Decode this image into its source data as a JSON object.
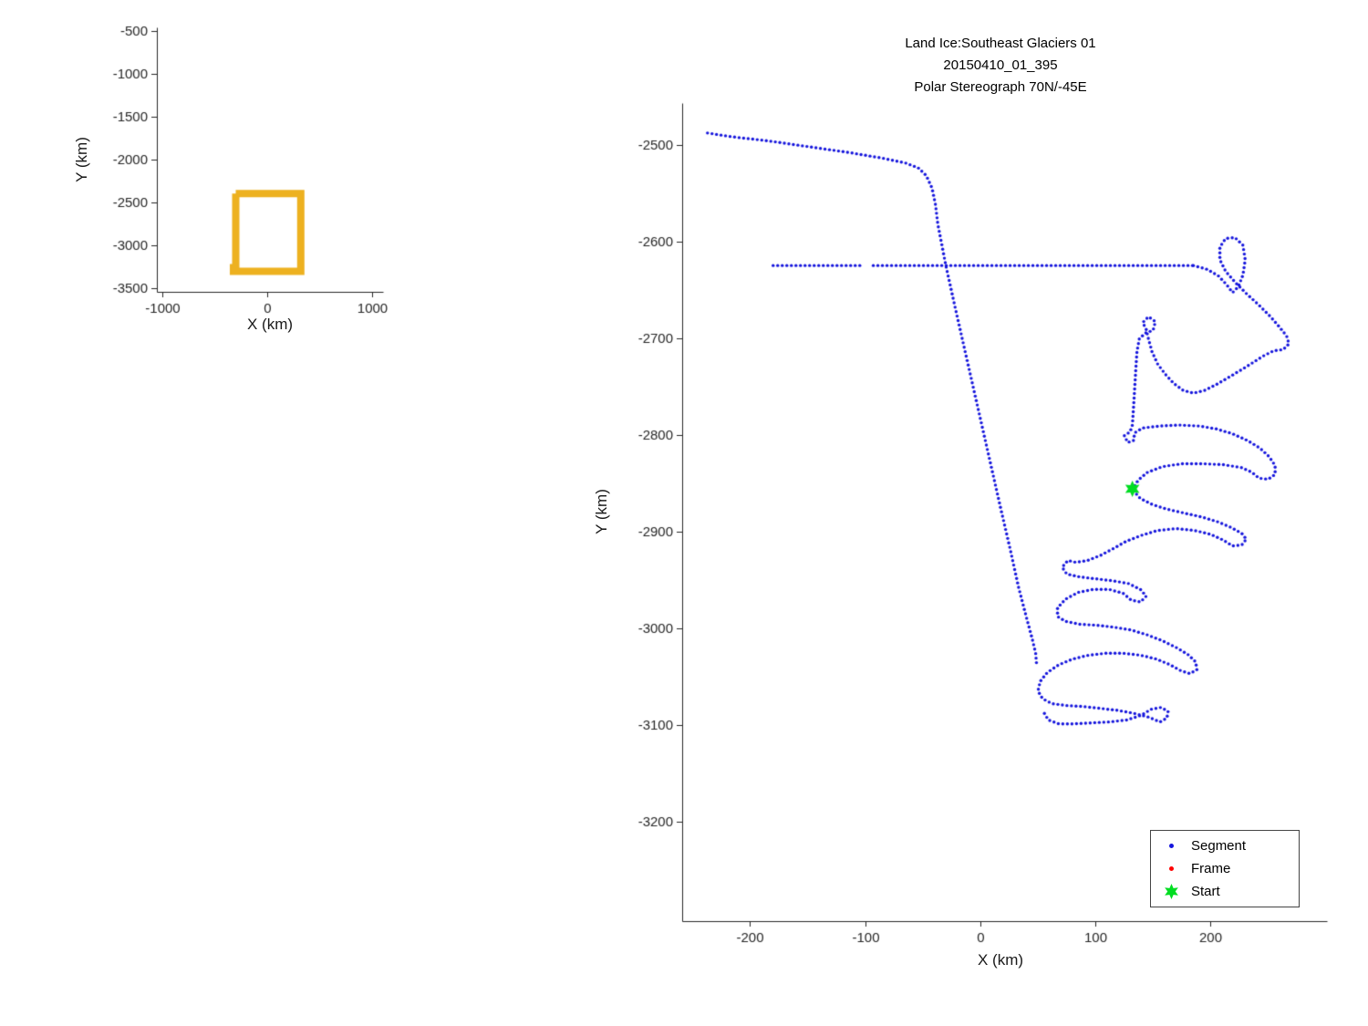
{
  "figure": {
    "background": "#ffffff"
  },
  "chart_data": [
    {
      "name": "coverage-overview-inset",
      "type": "line",
      "xlabel": "X (km)",
      "ylabel": "Y (km)",
      "xlim": [
        -1050,
        1100
      ],
      "ylim": [
        -3545,
        -460
      ],
      "xticks": [
        -1000,
        0,
        1000
      ],
      "yticks": [
        -500,
        -1000,
        -1500,
        -2000,
        -2500,
        -3000,
        -3500
      ],
      "grid": false,
      "series": [
        {
          "name": "flight-coverage-outline",
          "style": "line",
          "color": "#edb120",
          "line_width": 8,
          "paths": [
            [
              [
                -300,
                -2400
              ],
              [
                318,
                -2400
              ],
              [
                318,
                -3305
              ],
              [
                -322,
                -3305
              ],
              [
                -322,
                -3262
              ],
              [
                -300,
                -3262
              ],
              [
                -300,
                -2400
              ]
            ]
          ]
        }
      ]
    },
    {
      "name": "flight-track-main",
      "type": "scatter",
      "title_lines": [
        "Land Ice:Southeast Glaciers 01",
        "20150410_01_395",
        "Polar Stereograph 70N/-45E"
      ],
      "xlabel": "X (km)",
      "ylabel": "Y (km)",
      "xlim": [
        -259,
        301
      ],
      "ylim": [
        -3303,
        -2457
      ],
      "xticks": [
        -200,
        -100,
        0,
        100,
        200
      ],
      "yticks": [
        -2500,
        -2600,
        -2700,
        -2800,
        -2900,
        -3000,
        -3100,
        -3200
      ],
      "grid": false,
      "legend": {
        "position": "bottom-right",
        "entries": [
          {
            "label": "Segment",
            "marker": "dot",
            "color": "#1515dd"
          },
          {
            "label": "Frame",
            "marker": "dot",
            "color": "#ff0000"
          },
          {
            "label": "Start",
            "marker": "star",
            "color": "#00dd22"
          }
        ]
      },
      "series": [
        {
          "name": "Segment",
          "style": "dots",
          "color": "#1515dd",
          "dot_radius": 1.7,
          "dot_spacing_px": 5,
          "paths": [
            [
              [
                -237,
                -2488
              ],
              [
                -215,
                -2492
              ],
              [
                -185,
                -2496
              ],
              [
                -150,
                -2502
              ],
              [
                -115,
                -2508
              ],
              [
                -85,
                -2514
              ],
              [
                -65,
                -2519
              ],
              [
                -54,
                -2524
              ],
              [
                -47,
                -2532
              ],
              [
                -42,
                -2545
              ],
              [
                -39,
                -2562
              ],
              [
                -37,
                -2582
              ],
              [
                -30,
                -2625
              ],
              [
                -22,
                -2668
              ],
              [
                -14,
                -2710
              ],
              [
                -6,
                -2752
              ],
              [
                2,
                -2794
              ],
              [
                10,
                -2836
              ],
              [
                18,
                -2878
              ],
              [
                26,
                -2919
              ],
              [
                33,
                -2957
              ],
              [
                40,
                -2989
              ],
              [
                45,
                -3011
              ],
              [
                48,
                -3026
              ],
              [
                49,
                -3040
              ]
            ],
            [
              [
                -180,
                -2625
              ],
              [
                -102,
                -2625
              ]
            ],
            [
              [
                -93,
                -2625
              ],
              [
                185,
                -2625
              ]
            ],
            [
              [
                185,
                -2625
              ],
              [
                197,
                -2629
              ],
              [
                207,
                -2636
              ],
              [
                214,
                -2645
              ],
              [
                219,
                -2653
              ],
              [
                224,
                -2647
              ],
              [
                228,
                -2635
              ],
              [
                230,
                -2619
              ],
              [
                228,
                -2604
              ],
              [
                221,
                -2596
              ],
              [
                213,
                -2597
              ],
              [
                208,
                -2606
              ],
              [
                208,
                -2619
              ],
              [
                213,
                -2631
              ],
              [
                221,
                -2642
              ],
              [
                231,
                -2654
              ],
              [
                242,
                -2666
              ],
              [
                252,
                -2678
              ],
              [
                260,
                -2689
              ],
              [
                266,
                -2698
              ],
              [
                268,
                -2706
              ],
              [
                263,
                -2712
              ],
              [
                255,
                -2713
              ],
              [
                245,
                -2719
              ],
              [
                232,
                -2729
              ],
              [
                218,
                -2739
              ],
              [
                205,
                -2748
              ],
              [
                195,
                -2754
              ],
              [
                185,
                -2757
              ],
              [
                176,
                -2754
              ],
              [
                168,
                -2747
              ],
              [
                161,
                -2738
              ],
              [
                154,
                -2727
              ],
              [
                149,
                -2714
              ],
              [
                146,
                -2701
              ],
              [
                144,
                -2691
              ],
              [
                141,
                -2684
              ],
              [
                146,
                -2678
              ],
              [
                152,
                -2683
              ],
              [
                150,
                -2692
              ],
              [
                143,
                -2695
              ],
              [
                138,
                -2701
              ],
              [
                136,
                -2714
              ],
              [
                135,
                -2732
              ],
              [
                134,
                -2752
              ],
              [
                133,
                -2772
              ],
              [
                132,
                -2790
              ],
              [
                130,
                -2797
              ],
              [
                125,
                -2801
              ],
              [
                128,
                -2808
              ],
              [
                133,
                -2806
              ],
              [
                134,
                -2798
              ],
              [
                141,
                -2793
              ],
              [
                156,
                -2791
              ],
              [
                173,
                -2790
              ],
              [
                190,
                -2791
              ],
              [
                205,
                -2794
              ],
              [
                219,
                -2799
              ],
              [
                232,
                -2806
              ],
              [
                243,
                -2814
              ],
              [
                251,
                -2823
              ],
              [
                256,
                -2832
              ],
              [
                256,
                -2841
              ],
              [
                250,
                -2846
              ],
              [
                242,
                -2845
              ],
              [
                236,
                -2839
              ],
              [
                227,
                -2834
              ],
              [
                211,
                -2831
              ],
              [
                193,
                -2830
              ],
              [
                175,
                -2830
              ],
              [
                158,
                -2833
              ],
              [
                145,
                -2839
              ],
              [
                137,
                -2847
              ],
              [
                133,
                -2855
              ]
            ],
            [
              [
                133,
                -2858
              ],
              [
                139,
                -2866
              ],
              [
                149,
                -2872
              ],
              [
                162,
                -2877
              ],
              [
                177,
                -2881
              ],
              [
                192,
                -2885
              ],
              [
                206,
                -2890
              ],
              [
                218,
                -2896
              ],
              [
                227,
                -2902
              ],
              [
                231,
                -2908
              ],
              [
                227,
                -2914
              ],
              [
                219,
                -2915
              ],
              [
                211,
                -2909
              ],
              [
                200,
                -2903
              ],
              [
                186,
                -2899
              ],
              [
                170,
                -2897
              ],
              [
                154,
                -2899
              ],
              [
                140,
                -2904
              ],
              [
                127,
                -2910
              ],
              [
                115,
                -2918
              ],
              [
                104,
                -2925
              ],
              [
                93,
                -2930
              ],
              [
                83,
                -2932
              ],
              [
                76,
                -2930
              ],
              [
                71,
                -2937
              ],
              [
                75,
                -2944
              ],
              [
                86,
                -2947
              ],
              [
                100,
                -2949
              ],
              [
                115,
                -2951
              ],
              [
                129,
                -2954
              ],
              [
                139,
                -2960
              ],
              [
                144,
                -2967
              ],
              [
                139,
                -2973
              ],
              [
                131,
                -2971
              ],
              [
                124,
                -2964
              ],
              [
                112,
                -2960
              ],
              [
                98,
                -2960
              ],
              [
                85,
                -2963
              ],
              [
                74,
                -2970
              ],
              [
                67,
                -2979
              ],
              [
                67,
                -2988
              ],
              [
                74,
                -2993
              ],
              [
                86,
                -2996
              ],
              [
                101,
                -2997
              ],
              [
                116,
                -2999
              ],
              [
                131,
                -3002
              ],
              [
                145,
                -3007
              ],
              [
                158,
                -3013
              ],
              [
                170,
                -3020
              ],
              [
                180,
                -3027
              ],
              [
                187,
                -3035
              ],
              [
                188,
                -3043
              ],
              [
                182,
                -3047
              ],
              [
                174,
                -3044
              ],
              [
                165,
                -3038
              ],
              [
                153,
                -3032
              ],
              [
                139,
                -3028
              ],
              [
                124,
                -3026
              ],
              [
                109,
                -3026
              ],
              [
                94,
                -3028
              ],
              [
                80,
                -3032
              ],
              [
                68,
                -3038
              ],
              [
                58,
                -3046
              ],
              [
                52,
                -3055
              ],
              [
                50,
                -3065
              ],
              [
                54,
                -3073
              ],
              [
                62,
                -3078
              ],
              [
                74,
                -3080
              ],
              [
                89,
                -3081
              ],
              [
                104,
                -3083
              ],
              [
                119,
                -3085
              ],
              [
                133,
                -3088
              ],
              [
                146,
                -3092
              ],
              [
                156,
                -3097
              ],
              [
                162,
                -3093
              ],
              [
                163,
                -3086
              ],
              [
                157,
                -3082
              ],
              [
                148,
                -3084
              ],
              [
                140,
                -3090
              ],
              [
                127,
                -3095
              ],
              [
                112,
                -3097
              ],
              [
                96,
                -3098
              ],
              [
                81,
                -3099
              ],
              [
                68,
                -3099
              ],
              [
                59,
                -3095
              ],
              [
                55,
                -3087
              ]
            ]
          ]
        },
        {
          "name": "Frame",
          "style": "dots",
          "color": "#ff0000",
          "dot_radius": 1.7,
          "dot_spacing_px": 5,
          "paths": []
        },
        {
          "name": "Start",
          "style": "star",
          "color": "#00dd22",
          "size": 9,
          "points": [
            [
              132,
              -2856
            ]
          ]
        }
      ]
    }
  ]
}
